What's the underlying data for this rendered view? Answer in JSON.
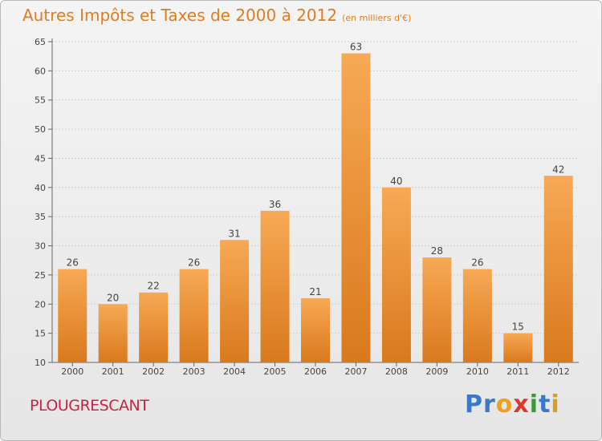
{
  "title": "Autres Impôts et Taxes de 2000 à 2012",
  "unit_note": "(en milliers d'€)",
  "commune": "PLOUGRESCANT",
  "logo": {
    "letters": [
      "P",
      "r",
      "o",
      "x",
      "i",
      "t",
      "i"
    ],
    "colors": [
      "#3a78c8",
      "#3a78c8",
      "#f0a020",
      "#d83a2a",
      "#3a9a3a",
      "#3a78c8",
      "#d8a020"
    ]
  },
  "chart_data": {
    "type": "bar",
    "title": "Autres Impôts et Taxes de 2000 à 2012",
    "subtitle": "(en milliers d'€)",
    "xlabel": "",
    "ylabel": "",
    "categories": [
      "2000",
      "2001",
      "2002",
      "2003",
      "2004",
      "2005",
      "2006",
      "2007",
      "2008",
      "2009",
      "2010",
      "2011",
      "2012"
    ],
    "values": [
      26,
      20,
      22,
      26,
      31,
      36,
      21,
      63,
      40,
      28,
      26,
      15,
      42
    ],
    "ylim": [
      10,
      65
    ],
    "yticks": [
      10,
      15,
      20,
      25,
      30,
      35,
      40,
      45,
      50,
      55,
      60,
      65
    ],
    "grid": true,
    "bar_color": "#f5a04a",
    "bar_color_dark": "#d97a1c"
  }
}
